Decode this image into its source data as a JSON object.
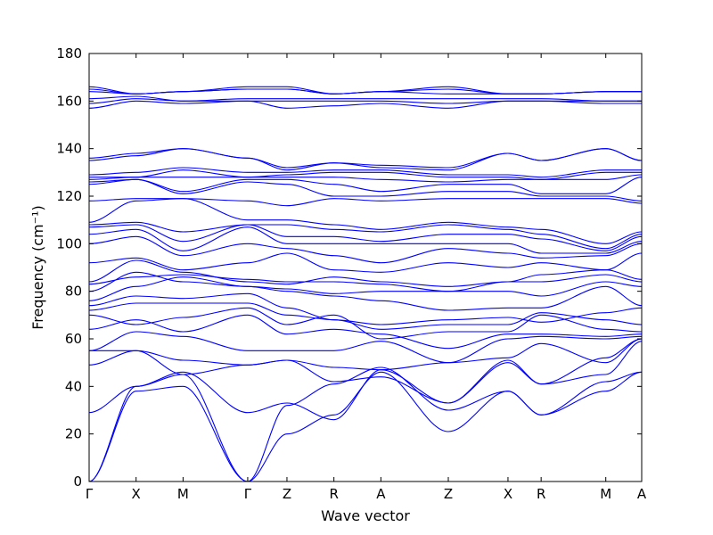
{
  "chart_data": {
    "type": "line",
    "title": "",
    "xlabel": "Wave vector",
    "ylabel": "Frequency (cm⁻¹)",
    "ylim": [
      0,
      180
    ],
    "yticks": [
      0,
      20,
      40,
      60,
      80,
      100,
      120,
      140,
      160,
      180
    ],
    "xlim": [
      0,
      1
    ],
    "grid": false,
    "line_color": "#0000ff",
    "xticks": [
      {
        "label": "Γ",
        "pos": 0.0
      },
      {
        "label": "X",
        "pos": 0.085
      },
      {
        "label": "M",
        "pos": 0.17
      },
      {
        "label": "Γ",
        "pos": 0.287
      },
      {
        "label": "Z",
        "pos": 0.358
      },
      {
        "label": "R",
        "pos": 0.443
      },
      {
        "label": "A",
        "pos": 0.528
      },
      {
        "label": "Z",
        "pos": 0.65
      },
      {
        "label": "X",
        "pos": 0.758
      },
      {
        "label": "R",
        "pos": 0.818
      },
      {
        "label": "M",
        "pos": 0.935
      },
      {
        "label": "A",
        "pos": 1.0
      }
    ],
    "series": [
      {
        "values": [
          0,
          38,
          40,
          0,
          20,
          28,
          46,
          21,
          38,
          28,
          42,
          46
        ]
      },
      {
        "values": [
          0,
          40,
          45,
          0,
          32,
          41,
          48,
          30,
          38,
          28,
          38,
          46
        ]
      },
      {
        "values": [
          29,
          40,
          46,
          29,
          33,
          26,
          47,
          33,
          50,
          41,
          45,
          59
        ]
      },
      {
        "values": [
          49,
          55,
          45,
          49,
          51,
          42,
          44,
          33,
          51,
          41,
          52,
          60
        ]
      },
      {
        "values": [
          55,
          55,
          51,
          49,
          51,
          48,
          47,
          50,
          52,
          58,
          50,
          60
        ]
      },
      {
        "values": [
          55,
          63,
          61,
          55,
          55,
          55,
          59,
          50,
          60,
          61,
          60,
          61
        ]
      },
      {
        "values": [
          64,
          68,
          63,
          70,
          62,
          64,
          62,
          56,
          62,
          62,
          61,
          62
        ]
      },
      {
        "values": [
          70,
          66,
          69,
          73,
          66,
          70,
          60,
          63,
          63,
          70,
          64,
          63
        ]
      },
      {
        "values": [
          72,
          75,
          75,
          75,
          70,
          68,
          64,
          66,
          66,
          71,
          68,
          66
        ]
      },
      {
        "values": [
          74,
          78,
          77,
          79,
          73,
          68,
          66,
          68,
          69,
          67,
          71,
          73
        ]
      },
      {
        "values": [
          76,
          82,
          86,
          82,
          80,
          78,
          76,
          72,
          73,
          73,
          82,
          74
        ]
      },
      {
        "values": [
          80,
          88,
          84,
          82,
          81,
          79,
          80,
          80,
          80,
          78,
          84,
          82
        ]
      },
      {
        "values": [
          83,
          86,
          87,
          85,
          84,
          84,
          83,
          80,
          84,
          84,
          87,
          84
        ]
      },
      {
        "values": [
          84,
          93,
          88,
          84,
          83,
          86,
          84,
          82,
          84,
          87,
          89,
          85
        ]
      },
      {
        "values": [
          92,
          94,
          89,
          92,
          96,
          89,
          88,
          92,
          90,
          92,
          89,
          96
        ]
      },
      {
        "values": [
          100,
          103,
          95,
          100,
          98,
          95,
          92,
          98,
          96,
          94,
          95,
          100
        ]
      },
      {
        "values": [
          104,
          106,
          97,
          107,
          100,
          100,
          100,
          100,
          100,
          96,
          96,
          101
        ]
      },
      {
        "values": [
          107,
          108,
          101,
          108,
          103,
          103,
          101,
          104,
          104,
          102,
          97,
          103
        ]
      },
      {
        "values": [
          108,
          109,
          105,
          108,
          108,
          106,
          105,
          108,
          106,
          104,
          98,
          104
        ]
      },
      {
        "values": [
          109,
          118,
          119,
          110,
          110,
          108,
          106,
          109,
          107,
          106,
          100,
          105
        ]
      },
      {
        "values": [
          118,
          119,
          119,
          118,
          116,
          119,
          118,
          119,
          119,
          119,
          119,
          117
        ]
      },
      {
        "values": [
          125,
          127,
          121,
          126,
          125,
          120,
          120,
          122,
          122,
          120,
          120,
          118
        ]
      },
      {
        "values": [
          126,
          127,
          122,
          127,
          127,
          125,
          122,
          125,
          125,
          121,
          121,
          128
        ]
      },
      {
        "values": [
          127,
          128,
          128,
          128,
          128,
          128,
          127,
          126,
          127,
          127,
          127,
          129
        ]
      },
      {
        "values": [
          128,
          128,
          131,
          128,
          129,
          130,
          130,
          128,
          128,
          127,
          130,
          130
        ]
      },
      {
        "values": [
          129,
          130,
          132,
          130,
          130,
          131,
          131,
          129,
          129,
          128,
          131,
          131
        ]
      },
      {
        "values": [
          135,
          137,
          140,
          136,
          131,
          134,
          132,
          131,
          138,
          135,
          140,
          135
        ]
      },
      {
        "values": [
          136,
          138,
          140,
          136,
          132,
          134,
          133,
          132,
          138,
          135,
          140,
          135
        ]
      },
      {
        "values": [
          157,
          160,
          159,
          160,
          157,
          158,
          159,
          157,
          160,
          160,
          159,
          159
        ]
      },
      {
        "values": [
          159,
          161,
          160,
          160,
          160,
          160,
          160,
          159,
          160,
          160,
          160,
          160
        ]
      },
      {
        "values": [
          161,
          162,
          160,
          161,
          161,
          161,
          161,
          161,
          161,
          161,
          160,
          160
        ]
      },
      {
        "values": [
          164,
          163,
          164,
          165,
          165,
          163,
          164,
          163,
          163,
          163,
          164,
          164
        ]
      },
      {
        "values": [
          165,
          163,
          164,
          165,
          165,
          163,
          164,
          165,
          163,
          163,
          164,
          164
        ]
      },
      {
        "values": [
          166,
          163,
          164,
          166,
          166,
          163,
          164,
          166,
          163,
          163,
          164,
          164
        ]
      }
    ]
  }
}
